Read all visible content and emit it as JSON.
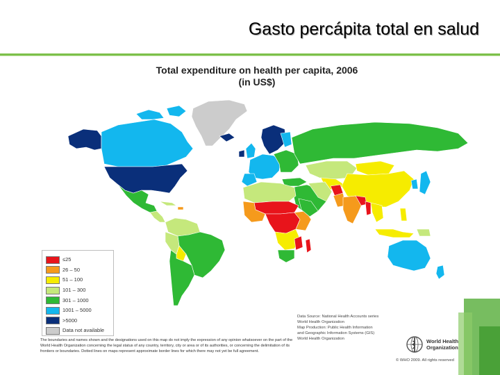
{
  "slide": {
    "title": "Gasto percápita total en salud"
  },
  "map": {
    "title_line1": "Total expenditure on health per capita, 2006",
    "title_line2": "(in US$)",
    "colors": {
      "ocean": "#ffffff",
      "border": "#ffffff",
      "class_le25": "#e8141b",
      "class_26_50": "#f59a1c",
      "class_51_100": "#f6ec00",
      "class_101_300": "#c5e87c",
      "class_301_1000": "#2fb935",
      "class_1001_5000": "#13b7ee",
      "class_gt5000": "#0a2f7a",
      "class_na": "#cccccc"
    }
  },
  "legend": {
    "items": [
      {
        "label": "≤25",
        "color": "#e8141b"
      },
      {
        "label": "26 – 50",
        "color": "#f59a1c"
      },
      {
        "label": "51 – 100",
        "color": "#f6ec00"
      },
      {
        "label": "101 – 300",
        "color": "#c5e87c"
      },
      {
        "label": "301 – 1000",
        "color": "#2fb935"
      },
      {
        "label": "1001 – 5000",
        "color": "#13b7ee"
      },
      {
        "label": ">5000",
        "color": "#0a2f7a"
      },
      {
        "label": "Data not available",
        "color": "#cccccc"
      }
    ]
  },
  "footer": {
    "disclaimer": "The boundaries and names shown and the designations used on this map do not imply the expression of any opinion whatsoever on the part of the World Health Organization concerning the legal status of any country, territory, city or area or of its authorities, or concerning the delimitation of its frontiers or boundaries. Dotted lines on maps represent approximate border lines for which there may not yet be full agreement.",
    "datasource": [
      "Data Source: National Health Accounts series",
      "World Health Organization",
      "Map Production: Public Health Information",
      "and Geographic Information Systems (GIS)",
      "World Health Organization"
    ],
    "who_line1": "World Health",
    "who_line2": "Organization",
    "copyright": "© WHO 2009. All rights reserved"
  }
}
